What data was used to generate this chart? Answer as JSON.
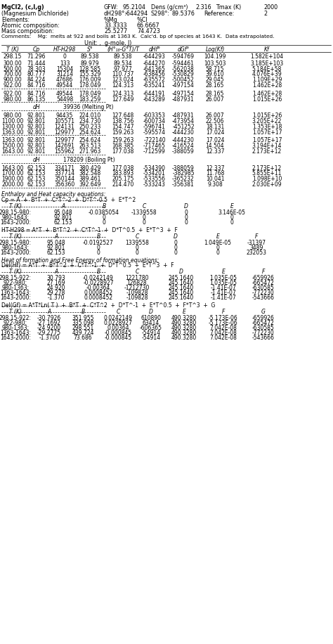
{
  "title_line1": "MgCl2, (c,l,g)",
  "title_line2": "(Magnesium Dichloride)",
  "gfw": "95.2104",
  "dens": "2.316",
  "tmax": "2000",
  "dh298": "-644294",
  "s298": "89.5376",
  "reference": "2",
  "pct_mg": "33.3333",
  "pct_cl": "66.6667",
  "mass_mg": "25.5277",
  "mass_cl": "74.4723",
  "comments": "Comments:    Mg:  melts at 922 and boils at 1363 K.  Calc'd. bp of species at 1643 K.  Data extrapolated.",
  "unit": "Unit: ,  g-mole, J)",
  "eq_section1_title": "Enthalpy and Heat capacity equations:",
  "eq_cp_formula": "Cp = A  +  B*T  +  C*T^-2  +  D*T^-0.5  +  E*T^2",
  "cp_data": [
    [
      "298.15-980:",
      "95.048",
      "-0.0385054",
      "-1339558",
      "0",
      "3.146E-05"
    ],
    [
      "980-1643:",
      "92.801",
      "0",
      "0",
      "0",
      "0"
    ],
    [
      "1643-2000:",
      "62.153",
      "0",
      "0",
      "0",
      "0"
    ]
  ],
  "eq_ht_formula": "HT-H298 = A*T  +  B*T^2  +  C*T^-1  +  D*T^0.5  +  E*T^3  +  F",
  "ht_data": [
    [
      "298.15-980:",
      "95.048",
      "-0.0192527",
      "1339558",
      "0",
      "1.049E-05",
      "-31397"
    ],
    [
      "980-1643:",
      "92.801",
      "0",
      "0",
      "0",
      "0",
      "3489"
    ],
    [
      "1643-2000:",
      "62.153",
      "0",
      "0",
      "0",
      "0",
      "232053"
    ]
  ],
  "eq_section2_title": "Heat of formation and Free Energy of formation equations:",
  "eq_delhf_formula": "Del(Hf) = A*T  +  B*T^2  +  C*T^-1  +  D*T^0.5  +  E*T^3  +  F",
  "delhf_data": [
    [
      "298.15-922:",
      "30.793",
      "-0.0242149",
      "1221780",
      "245.1640",
      "1.035E-05",
      "-659926"
    ],
    [
      "922-980:",
      "27.169",
      "-0.0228927",
      "126828",
      "245.1640",
      "1.035E-05",
      "-665472"
    ],
    [
      "980-1363:",
      "24.920",
      "-0.00364",
      "-1212730",
      "245.1640",
      "-1.41E-07",
      "-630585"
    ],
    [
      "1363-1643:",
      "29.278",
      "0.0008452",
      "-109828",
      "245.1640",
      "-1.41E-07",
      "-772230"
    ],
    [
      "1643-2000:",
      "-1.370",
      "0.0008452",
      "-109828",
      "245.1640",
      "-1.41E-07",
      "-543666"
    ]
  ],
  "eq_delgf_formula": "Del(Gf) = A*T*Ln( T )  +  B*T  +  C*T^2  +  D*T^-1  +  E*T^0.5  +  F*T^3  +  G",
  "delgf_data": [
    [
      "298.15-922:",
      "-30.7926",
      "351.955",
      "0.0242149",
      "610890",
      "490.3280",
      "-5.173E-06",
      "-659926"
    ],
    [
      "922-980:",
      "-27.1692",
      "335.098",
      "0.0228927",
      "63414",
      "490.3280",
      "-5.173E-06",
      "-665472"
    ],
    [
      "980-1363:",
      "-24.9200",
      "298.551",
      "0.00364",
      "-606365",
      "490.3280",
      "7.042E-08",
      "-630585"
    ],
    [
      "1363-1643:",
      "-29.2775",
      "439.724",
      "-0.000845",
      "-54914",
      "490.3280",
      "7.042E-08",
      "-772230"
    ],
    [
      "1643-2000:",
      "-1.3700",
      "73.686",
      "-0.000845",
      "-54914",
      "490.3280",
      "7.042E-08",
      "-543666"
    ]
  ]
}
